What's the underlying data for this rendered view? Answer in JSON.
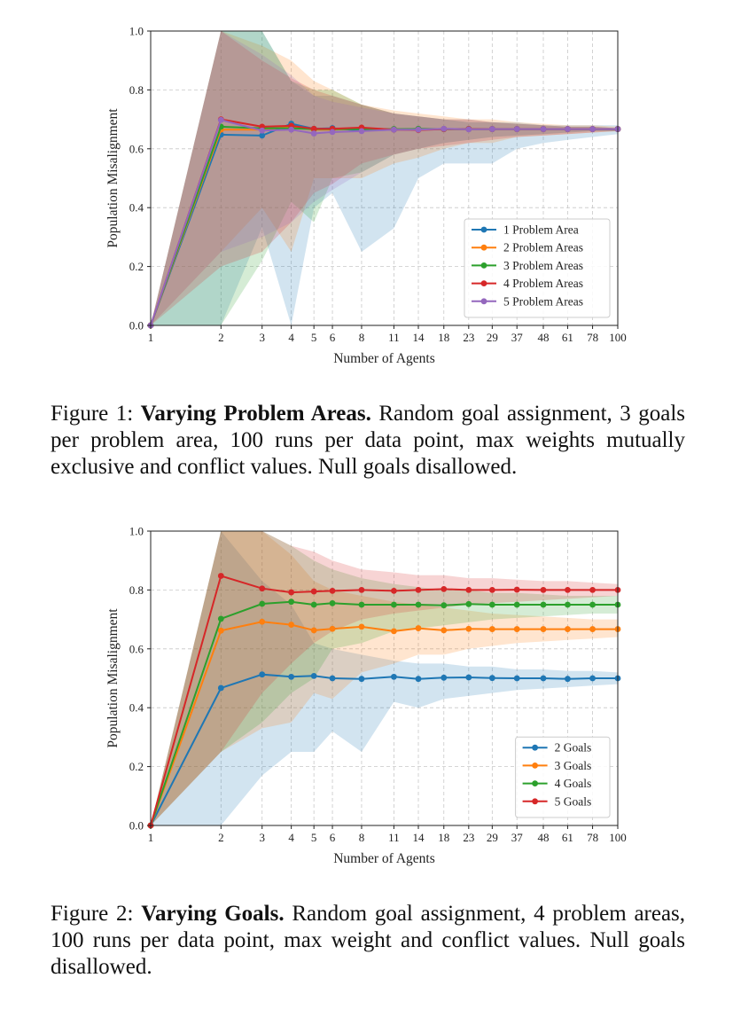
{
  "figures": [
    {
      "caption": {
        "label": "Figure 1:",
        "bold": "Varying Problem Areas.",
        "text": "Random goal assignment, 3 goals per problem area, 100 runs per data point, max weights mutually exclusive and conflict values. Null goals disallowed."
      }
    },
    {
      "caption": {
        "label": "Figure 2:",
        "bold": "Varying Goals.",
        "text": "Random goal assignment, 4 problem areas, 100 runs per data point, max weight and conflict values. Null goals disallowed."
      }
    }
  ],
  "chart_data": [
    {
      "type": "line",
      "xlabel": "Number of Agents",
      "ylabel": "Population Misalignment",
      "x_scale": "log",
      "x": [
        1,
        2,
        3,
        4,
        5,
        6,
        8,
        11,
        14,
        18,
        23,
        29,
        37,
        48,
        61,
        78,
        100
      ],
      "x_tick_labels": [
        "1",
        "2",
        "3",
        "4",
        "5",
        "6",
        "8",
        "11",
        "14",
        "18",
        "23",
        "29",
        "37",
        "48",
        "61",
        "78",
        "100"
      ],
      "ylim": [
        0,
        1
      ],
      "y_tick_labels": [
        "0.0",
        "0.2",
        "0.4",
        "0.6",
        "0.8",
        "1.0"
      ],
      "grid": true,
      "legend_position": "lower-right",
      "series": [
        {
          "name": "1 Problem Area",
          "color": "#1f77b4",
          "values": [
            0.0,
            0.648,
            0.645,
            0.685,
            0.668,
            0.67,
            0.662,
            0.665,
            0.668,
            0.667,
            0.667,
            0.667,
            0.667,
            0.667,
            0.667,
            0.667,
            0.667
          ],
          "lower": [
            0.0,
            0.0,
            0.333,
            0.0,
            0.4,
            0.45,
            0.25,
            0.33,
            0.5,
            0.55,
            0.55,
            0.55,
            0.6,
            0.62,
            0.63,
            0.64,
            0.65
          ],
          "upper": [
            0.0,
            1.0,
            1.0,
            0.83,
            0.78,
            0.78,
            0.75,
            0.72,
            0.71,
            0.7,
            0.7,
            0.69,
            0.69,
            0.68,
            0.68,
            0.68,
            0.68
          ]
        },
        {
          "name": "2 Problem Areas",
          "color": "#ff7f0e",
          "values": [
            0.0,
            0.665,
            0.665,
            0.675,
            0.665,
            0.665,
            0.668,
            0.665,
            0.667,
            0.667,
            0.667,
            0.667,
            0.667,
            0.667,
            0.667,
            0.667,
            0.667
          ],
          "lower": [
            0.0,
            0.25,
            0.4,
            0.25,
            0.5,
            0.5,
            0.5,
            0.55,
            0.57,
            0.6,
            0.62,
            0.62,
            0.64,
            0.645,
            0.65,
            0.655,
            0.66
          ],
          "upper": [
            0.0,
            1.0,
            0.95,
            0.9,
            0.83,
            0.8,
            0.75,
            0.73,
            0.72,
            0.71,
            0.7,
            0.7,
            0.69,
            0.685,
            0.68,
            0.68,
            0.675
          ]
        },
        {
          "name": "3 Problem Areas",
          "color": "#2ca02c",
          "values": [
            0.0,
            0.675,
            0.67,
            0.67,
            0.667,
            0.667,
            0.667,
            0.667,
            0.667,
            0.667,
            0.667,
            0.667,
            0.667,
            0.667,
            0.667,
            0.667,
            0.667
          ],
          "lower": [
            0.0,
            0.0,
            0.22,
            0.42,
            0.35,
            0.5,
            0.52,
            0.58,
            0.6,
            0.62,
            0.63,
            0.64,
            0.645,
            0.65,
            0.655,
            0.66,
            0.66
          ],
          "upper": [
            0.0,
            1.0,
            1.0,
            0.83,
            0.8,
            0.8,
            0.75,
            0.72,
            0.71,
            0.7,
            0.69,
            0.69,
            0.685,
            0.68,
            0.675,
            0.675,
            0.67
          ]
        },
        {
          "name": "4 Problem Areas",
          "color": "#d62728",
          "values": [
            0.0,
            0.7,
            0.675,
            0.678,
            0.668,
            0.668,
            0.672,
            0.665,
            0.664,
            0.667,
            0.667,
            0.667,
            0.667,
            0.667,
            0.667,
            0.667,
            0.667
          ],
          "lower": [
            0.0,
            0.2,
            0.25,
            0.35,
            0.45,
            0.48,
            0.55,
            0.58,
            0.6,
            0.61,
            0.62,
            0.63,
            0.64,
            0.645,
            0.65,
            0.655,
            0.66
          ],
          "upper": [
            0.0,
            1.0,
            0.9,
            0.84,
            0.8,
            0.78,
            0.75,
            0.72,
            0.71,
            0.7,
            0.7,
            0.69,
            0.685,
            0.68,
            0.675,
            0.675,
            0.67
          ]
        },
        {
          "name": "5 Problem Areas",
          "color": "#9467bd",
          "values": [
            0.0,
            0.698,
            0.662,
            0.665,
            0.652,
            0.657,
            0.66,
            0.665,
            0.665,
            0.668,
            0.666,
            0.667,
            0.667,
            0.667,
            0.667,
            0.667,
            0.667
          ],
          "lower": [
            0.0,
            0.25,
            0.3,
            0.35,
            0.42,
            0.46,
            0.52,
            0.58,
            0.6,
            0.62,
            0.63,
            0.64,
            0.645,
            0.65,
            0.655,
            0.66,
            0.66
          ],
          "upper": [
            0.0,
            1.0,
            0.92,
            0.85,
            0.78,
            0.76,
            0.74,
            0.72,
            0.71,
            0.7,
            0.69,
            0.69,
            0.685,
            0.68,
            0.675,
            0.675,
            0.67
          ]
        }
      ]
    },
    {
      "type": "line",
      "xlabel": "Number of Agents",
      "ylabel": "Population Misalignment",
      "x_scale": "log",
      "x": [
        1,
        2,
        3,
        4,
        5,
        6,
        8,
        11,
        14,
        18,
        23,
        29,
        37,
        48,
        61,
        78,
        100
      ],
      "x_tick_labels": [
        "1",
        "2",
        "3",
        "4",
        "5",
        "6",
        "8",
        "11",
        "14",
        "18",
        "23",
        "29",
        "37",
        "48",
        "61",
        "78",
        "100"
      ],
      "ylim": [
        0,
        1
      ],
      "y_tick_labels": [
        "0.0",
        "0.2",
        "0.4",
        "0.6",
        "0.8",
        "1.0"
      ],
      "grid": true,
      "legend_position": "lower-right",
      "series": [
        {
          "name": "2 Goals",
          "color": "#1f77b4",
          "values": [
            0.0,
            0.467,
            0.513,
            0.505,
            0.508,
            0.5,
            0.498,
            0.505,
            0.498,
            0.502,
            0.503,
            0.501,
            0.5,
            0.5,
            0.498,
            0.5,
            0.5
          ],
          "lower": [
            0.0,
            0.0,
            0.17,
            0.25,
            0.25,
            0.32,
            0.25,
            0.42,
            0.4,
            0.43,
            0.44,
            0.45,
            0.46,
            0.465,
            0.47,
            0.475,
            0.48
          ],
          "upper": [
            0.0,
            1.0,
            0.83,
            0.75,
            0.62,
            0.6,
            0.58,
            0.56,
            0.55,
            0.55,
            0.54,
            0.54,
            0.53,
            0.53,
            0.525,
            0.525,
            0.52
          ]
        },
        {
          "name": "3 Goals",
          "color": "#ff7f0e",
          "values": [
            0.0,
            0.662,
            0.692,
            0.682,
            0.663,
            0.668,
            0.675,
            0.66,
            0.67,
            0.663,
            0.668,
            0.667,
            0.667,
            0.667,
            0.667,
            0.667,
            0.667
          ],
          "lower": [
            0.0,
            0.25,
            0.33,
            0.35,
            0.45,
            0.43,
            0.52,
            0.55,
            0.58,
            0.58,
            0.6,
            0.61,
            0.62,
            0.625,
            0.63,
            0.635,
            0.64
          ],
          "upper": [
            0.0,
            1.0,
            1.0,
            0.92,
            0.83,
            0.8,
            0.78,
            0.76,
            0.75,
            0.74,
            0.73,
            0.72,
            0.715,
            0.71,
            0.705,
            0.7,
            0.7
          ]
        },
        {
          "name": "4 Goals",
          "color": "#2ca02c",
          "values": [
            0.0,
            0.702,
            0.753,
            0.76,
            0.75,
            0.755,
            0.75,
            0.75,
            0.75,
            0.748,
            0.752,
            0.75,
            0.75,
            0.75,
            0.75,
            0.75,
            0.75
          ],
          "lower": [
            0.0,
            0.25,
            0.35,
            0.45,
            0.5,
            0.6,
            0.62,
            0.66,
            0.67,
            0.68,
            0.69,
            0.7,
            0.705,
            0.71,
            0.715,
            0.72,
            0.72
          ],
          "upper": [
            0.0,
            1.0,
            1.0,
            0.95,
            0.9,
            0.87,
            0.84,
            0.82,
            0.81,
            0.8,
            0.8,
            0.79,
            0.79,
            0.785,
            0.78,
            0.78,
            0.78
          ]
        },
        {
          "name": "5 Goals",
          "color": "#d62728",
          "values": [
            0.0,
            0.848,
            0.805,
            0.792,
            0.795,
            0.797,
            0.8,
            0.797,
            0.8,
            0.803,
            0.8,
            0.8,
            0.801,
            0.8,
            0.8,
            0.8,
            0.8
          ],
          "lower": [
            0.0,
            0.25,
            0.45,
            0.55,
            0.62,
            0.66,
            0.7,
            0.72,
            0.73,
            0.74,
            0.75,
            0.755,
            0.76,
            0.765,
            0.77,
            0.775,
            0.78
          ],
          "upper": [
            0.0,
            1.0,
            1.0,
            0.95,
            0.93,
            0.9,
            0.87,
            0.86,
            0.85,
            0.85,
            0.84,
            0.84,
            0.835,
            0.83,
            0.83,
            0.825,
            0.82
          ]
        }
      ]
    }
  ]
}
